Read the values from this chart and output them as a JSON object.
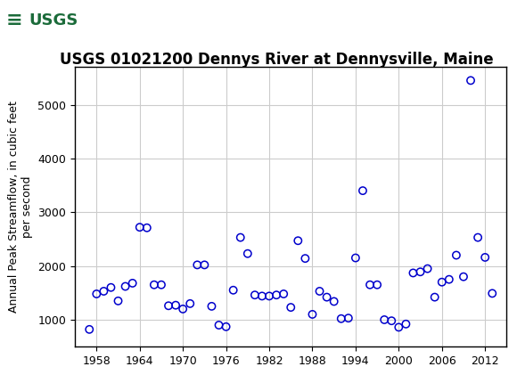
{
  "title": "USGS 01021200 Dennys River at Dennysville, Maine",
  "ylabel": "Annual Peak Streamflow, in cubic feet\nper second",
  "xlim": [
    1955,
    2015
  ],
  "ylim": [
    500,
    5700
  ],
  "yticks": [
    1000,
    2000,
    3000,
    4000,
    5000
  ],
  "xticks": [
    1958,
    1964,
    1970,
    1976,
    1982,
    1988,
    1994,
    2000,
    2006,
    2012
  ],
  "years": [
    1957,
    1958,
    1959,
    1960,
    1961,
    1962,
    1963,
    1964,
    1965,
    1966,
    1967,
    1968,
    1969,
    1970,
    1971,
    1972,
    1973,
    1974,
    1975,
    1976,
    1977,
    1978,
    1979,
    1980,
    1981,
    1982,
    1983,
    1984,
    1985,
    1986,
    1987,
    1988,
    1989,
    1990,
    1991,
    1992,
    1993,
    1994,
    1995,
    1996,
    1997,
    1998,
    1999,
    2000,
    2001,
    2002,
    2003,
    2004,
    2005,
    2006,
    2007,
    2008,
    2009,
    2010,
    2011,
    2012,
    2013
  ],
  "flows": [
    820,
    1480,
    1530,
    1600,
    1350,
    1620,
    1680,
    2720,
    2710,
    1650,
    1650,
    1260,
    1270,
    1200,
    1300,
    2020,
    2020,
    1250,
    900,
    870,
    1550,
    2530,
    2230,
    1460,
    1440,
    1440,
    1460,
    1480,
    1230,
    2470,
    2140,
    1100,
    1530,
    1420,
    1340,
    1020,
    1030,
    2150,
    3400,
    1650,
    1650,
    1000,
    980,
    860,
    920,
    1870,
    1890,
    1950,
    1420,
    1700,
    1750,
    2200,
    1800,
    5450,
    2530,
    2160,
    1490
  ],
  "marker_color": "#0000CC",
  "marker_size": 6,
  "grid_color": "#CCCCCC",
  "bg_color": "#FFFFFF",
  "header_bg": "#1B6B3A",
  "logo_box_color": "#FFFFFF",
  "logo_text_color": "#1B6B3A",
  "title_fontsize": 12,
  "label_fontsize": 9,
  "tick_fontsize": 9
}
